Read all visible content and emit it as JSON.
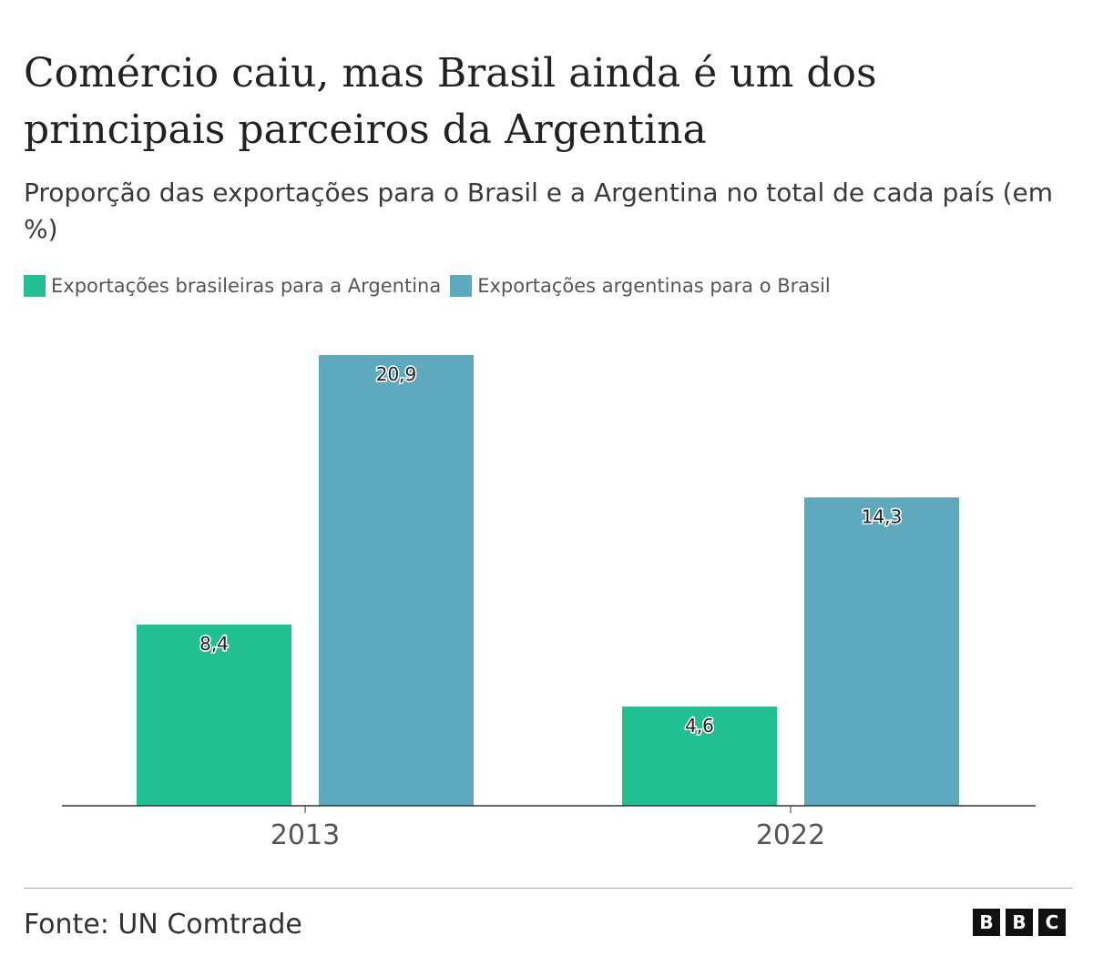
{
  "title": "Comércio caiu, mas Brasil ainda é um dos principais parceiros da Argentina",
  "subtitle": "Proporção das exportações para o Brasil e a Argentina no total de cada país (em %)",
  "source": "Fonte: UN Comtrade",
  "logo": "BBC",
  "chart_data": {
    "type": "bar",
    "categories": [
      "2013",
      "2022"
    ],
    "series": [
      {
        "name": "Exportações brasileiras para a Argentina",
        "values": [
          8.4,
          4.6
        ],
        "labels": [
          "8,4",
          "4,6"
        ],
        "color": "#22bf92"
      },
      {
        "name": "Exportações argentinas para o Brasil",
        "values": [
          20.9,
          14.3
        ],
        "labels": [
          "20,9",
          "14,3"
        ],
        "color": "#5fa9bf"
      }
    ],
    "ylim": [
      0,
      20.9
    ],
    "grid": false,
    "legend_position": "top-left",
    "xlabel": "",
    "ylabel": ""
  }
}
